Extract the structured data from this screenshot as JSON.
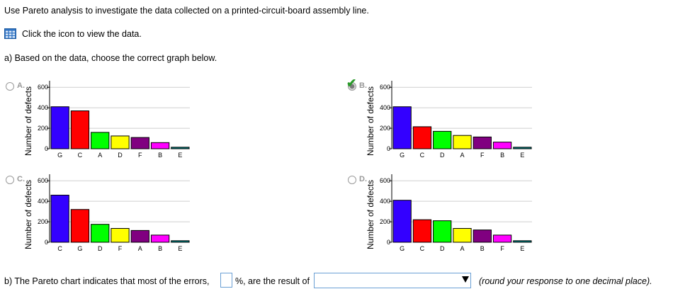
{
  "instruction": "Use Pareto analysis to investigate the data collected on a printed-circuit-board assembly line.",
  "data_link": {
    "label": "Click the icon to view the data.",
    "icon": "table-icon"
  },
  "question_a": "a) Based on the data, choose the correct graph below.",
  "colors": {
    "A": "#3300ff",
    "B": "#ff0000",
    "C": "#00ff00",
    "D": "#ffff00",
    "E": "#008080",
    "F": "#800080",
    "G": "#ff00ff"
  },
  "options": [
    {
      "letter": "A.",
      "selected": false,
      "correct_mark": false
    },
    {
      "letter": "B.",
      "selected": true,
      "correct_mark": true
    },
    {
      "letter": "C.",
      "selected": false,
      "correct_mark": false
    },
    {
      "letter": "D.",
      "selected": false,
      "correct_mark": false
    }
  ],
  "chart_data": [
    {
      "type": "bar",
      "ylabel": "Number of defects",
      "yticks": [
        "0",
        "200",
        "400",
        "600"
      ],
      "ylim": [
        0,
        650
      ],
      "categories": [
        "G",
        "C",
        "A",
        "D",
        "F",
        "B",
        "E"
      ],
      "values": [
        410,
        370,
        160,
        125,
        110,
        60,
        15
      ],
      "bar_colors": [
        "#3300ff",
        "#ff0000",
        "#00ff00",
        "#ffff00",
        "#800080",
        "#ff00ff",
        "#008080"
      ]
    },
    {
      "type": "bar",
      "ylabel": "Number of defects",
      "yticks": [
        "0",
        "200",
        "400",
        "600"
      ],
      "ylim": [
        0,
        650
      ],
      "categories": [
        "G",
        "C",
        "D",
        "A",
        "F",
        "B",
        "E"
      ],
      "values": [
        410,
        215,
        170,
        130,
        115,
        65,
        15
      ],
      "bar_colors": [
        "#3300ff",
        "#ff0000",
        "#00ff00",
        "#ffff00",
        "#800080",
        "#ff00ff",
        "#008080"
      ]
    },
    {
      "type": "bar",
      "ylabel": "Number of defects",
      "yticks": [
        "0",
        "200",
        "400",
        "600"
      ],
      "ylim": [
        0,
        650
      ],
      "categories": [
        "C",
        "G",
        "D",
        "F",
        "A",
        "B",
        "E"
      ],
      "values": [
        460,
        320,
        175,
        135,
        115,
        70,
        15
      ],
      "bar_colors": [
        "#3300ff",
        "#ff0000",
        "#00ff00",
        "#ffff00",
        "#800080",
        "#ff00ff",
        "#008080"
      ]
    },
    {
      "type": "bar",
      "ylabel": "Number of defects",
      "yticks": [
        "0",
        "200",
        "400",
        "600"
      ],
      "ylim": [
        0,
        650
      ],
      "categories": [
        "G",
        "C",
        "D",
        "A",
        "B",
        "F",
        "E"
      ],
      "values": [
        410,
        220,
        210,
        135,
        120,
        70,
        15
      ],
      "bar_colors": [
        "#3300ff",
        "#ff0000",
        "#00ff00",
        "#ffff00",
        "#800080",
        "#ff00ff",
        "#008080"
      ]
    }
  ],
  "question_b": {
    "prefix": "b) The Pareto chart indicates that most of the errors,",
    "percent_value": "",
    "middle": "%, are the result of",
    "select_value": "",
    "note": "(round your response to one decimal place)."
  }
}
